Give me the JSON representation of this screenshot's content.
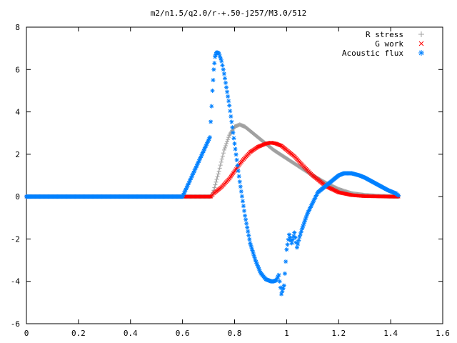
{
  "chart_data": {
    "type": "scatter",
    "title": "m2/n1.5/q2.0/r-+.50-j257/M3.0/512",
    "xlabel": "",
    "ylabel": "",
    "xlim": [
      0,
      1.6
    ],
    "ylim": [
      -6,
      8
    ],
    "x_ticks": [
      "0",
      "0.2",
      "0.4",
      "0.6",
      "0.8",
      "1",
      "1.2",
      "1.4",
      "1.6"
    ],
    "y_ticks": [
      "-6",
      "-4",
      "-2",
      "0",
      "2",
      "4",
      "6",
      "8"
    ],
    "legend_position": "top-right",
    "grid": false,
    "series": [
      {
        "name": "R stress",
        "marker": "plus",
        "color": "#a0a0a0",
        "x": [
          0,
          0.2,
          0.4,
          0.6,
          0.71,
          0.72,
          0.74,
          0.76,
          0.78,
          0.8,
          0.82,
          0.84,
          0.86,
          0.88,
          0.9,
          0.92,
          0.95,
          1.0,
          1.05,
          1.1,
          1.15,
          1.2,
          1.25,
          1.3,
          1.35,
          1.4,
          1.43
        ],
        "values": [
          0,
          0,
          0,
          0,
          0,
          0.3,
          1.2,
          2.2,
          2.9,
          3.3,
          3.4,
          3.3,
          3.1,
          2.9,
          2.7,
          2.5,
          2.2,
          1.8,
          1.4,
          1.0,
          0.65,
          0.35,
          0.15,
          0.07,
          0.03,
          0.01,
          0
        ]
      },
      {
        "name": "G work",
        "marker": "cross",
        "color": "#ff0000",
        "x": [
          0,
          0.2,
          0.4,
          0.6,
          0.71,
          0.72,
          0.75,
          0.78,
          0.8,
          0.83,
          0.86,
          0.89,
          0.92,
          0.94,
          0.96,
          0.98,
          1.0,
          1.03,
          1.06,
          1.1,
          1.15,
          1.2,
          1.25,
          1.3,
          1.35,
          1.4,
          1.43
        ],
        "values": [
          0,
          0,
          0,
          0,
          0,
          0.15,
          0.45,
          0.85,
          1.2,
          1.7,
          2.1,
          2.35,
          2.5,
          2.55,
          2.5,
          2.4,
          2.2,
          1.9,
          1.5,
          1.0,
          0.5,
          0.2,
          0.07,
          0.02,
          0.01,
          0,
          0
        ]
      },
      {
        "name": "Acoustic flux",
        "marker": "star",
        "color": "#0080ff",
        "x": [
          0,
          0.2,
          0.4,
          0.6,
          0.705,
          0.715,
          0.72,
          0.725,
          0.73,
          0.735,
          0.74,
          0.75,
          0.76,
          0.78,
          0.8,
          0.82,
          0.84,
          0.86,
          0.88,
          0.9,
          0.92,
          0.94,
          0.95,
          0.96,
          0.97,
          0.98,
          0.99,
          1.0,
          1.01,
          1.02,
          1.03,
          1.04,
          1.05,
          1.06,
          1.08,
          1.1,
          1.12,
          1.15,
          1.18,
          1.2,
          1.22,
          1.25,
          1.28,
          1.3,
          1.33,
          1.36,
          1.39,
          1.42,
          1.43
        ],
        "values": [
          0,
          0,
          0,
          0,
          2.8,
          5.0,
          6.0,
          6.6,
          6.8,
          6.8,
          6.75,
          6.4,
          5.8,
          4.3,
          2.5,
          0.7,
          -0.9,
          -2.2,
          -3.0,
          -3.6,
          -3.9,
          -4.0,
          -4.0,
          -3.95,
          -3.7,
          -4.6,
          -4.2,
          -2.5,
          -1.8,
          -2.2,
          -1.7,
          -2.4,
          -1.9,
          -1.5,
          -0.8,
          -0.3,
          0.2,
          0.5,
          0.8,
          1.0,
          1.1,
          1.1,
          1.0,
          0.9,
          0.7,
          0.5,
          0.3,
          0.15,
          0.05
        ]
      }
    ]
  }
}
